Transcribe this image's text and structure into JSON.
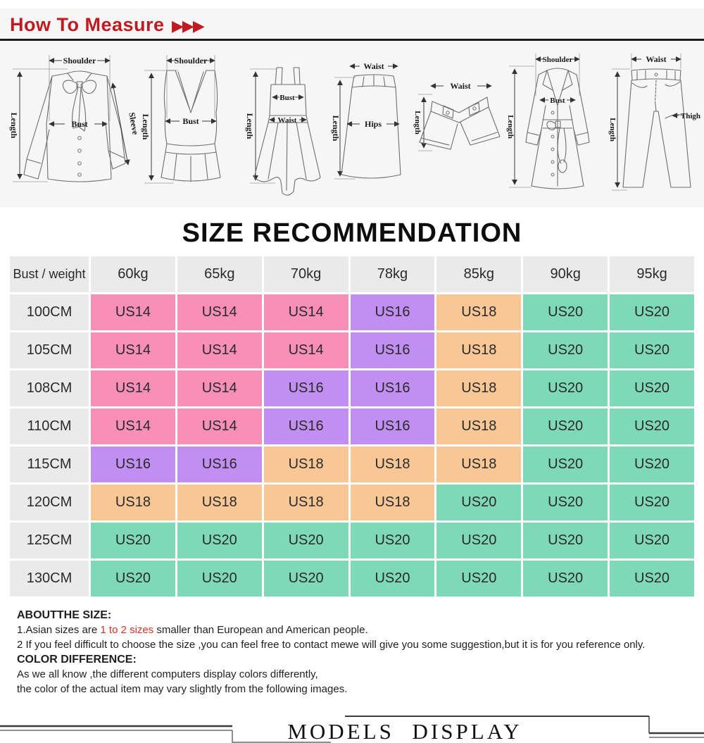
{
  "header": {
    "title": "How To Measure",
    "arrows": "▶▶▶"
  },
  "measure": {
    "garments": [
      {
        "name": "blouse",
        "labels": [
          "Shoulder",
          "Length",
          "Bust",
          "Sleeve"
        ]
      },
      {
        "name": "vest",
        "labels": [
          "Shoulder",
          "Length",
          "Bust"
        ]
      },
      {
        "name": "dress",
        "labels": [
          "Length",
          "Bust",
          "Waist"
        ]
      },
      {
        "name": "skirt",
        "labels": [
          "Waist",
          "Length",
          "Hips"
        ]
      },
      {
        "name": "shorts",
        "labels": [
          "Waist",
          "Length"
        ]
      },
      {
        "name": "coat",
        "labels": [
          "Shoulder",
          "Length",
          "Bust"
        ]
      },
      {
        "name": "pants",
        "labels": [
          "Waist",
          "Length",
          "Thigh"
        ]
      }
    ]
  },
  "size_title": "SIZE RECOMMENDATION",
  "size_table": {
    "columns": [
      "Bust / weight",
      "60kg",
      "65kg",
      "70kg",
      "78kg",
      "85kg",
      "90kg",
      "95kg"
    ],
    "palette": {
      "pink": "#F78FB7",
      "purple": "#C18EF1",
      "orange": "#F9C795",
      "green": "#7ED9B7",
      "gray": "#EAEAEA"
    },
    "rows": [
      {
        "label": "100CM",
        "cells": [
          {
            "v": "US14",
            "c": "pink"
          },
          {
            "v": "US14",
            "c": "pink"
          },
          {
            "v": "US14",
            "c": "pink"
          },
          {
            "v": "US16",
            "c": "purple"
          },
          {
            "v": "US18",
            "c": "orange"
          },
          {
            "v": "US20",
            "c": "green"
          },
          {
            "v": "US20",
            "c": "green"
          }
        ]
      },
      {
        "label": "105CM",
        "cells": [
          {
            "v": "US14",
            "c": "pink"
          },
          {
            "v": "US14",
            "c": "pink"
          },
          {
            "v": "US14",
            "c": "pink"
          },
          {
            "v": "US16",
            "c": "purple"
          },
          {
            "v": "US18",
            "c": "orange"
          },
          {
            "v": "US20",
            "c": "green"
          },
          {
            "v": "US20",
            "c": "green"
          }
        ]
      },
      {
        "label": "108CM",
        "cells": [
          {
            "v": "US14",
            "c": "pink"
          },
          {
            "v": "US14",
            "c": "pink"
          },
          {
            "v": "US16",
            "c": "purple"
          },
          {
            "v": "US16",
            "c": "purple"
          },
          {
            "v": "US18",
            "c": "orange"
          },
          {
            "v": "US20",
            "c": "green"
          },
          {
            "v": "US20",
            "c": "green"
          }
        ]
      },
      {
        "label": "110CM",
        "cells": [
          {
            "v": "US14",
            "c": "pink"
          },
          {
            "v": "US14",
            "c": "pink"
          },
          {
            "v": "US16",
            "c": "purple"
          },
          {
            "v": "US16",
            "c": "purple"
          },
          {
            "v": "US18",
            "c": "orange"
          },
          {
            "v": "US20",
            "c": "green"
          },
          {
            "v": "US20",
            "c": "green"
          }
        ]
      },
      {
        "label": "115CM",
        "cells": [
          {
            "v": "US16",
            "c": "purple"
          },
          {
            "v": "US16",
            "c": "purple"
          },
          {
            "v": "US18",
            "c": "orange"
          },
          {
            "v": "US18",
            "c": "orange"
          },
          {
            "v": "US18",
            "c": "orange"
          },
          {
            "v": "US20",
            "c": "green"
          },
          {
            "v": "US20",
            "c": "green"
          }
        ]
      },
      {
        "label": "120CM",
        "cells": [
          {
            "v": "US18",
            "c": "orange"
          },
          {
            "v": "US18",
            "c": "orange"
          },
          {
            "v": "US18",
            "c": "orange"
          },
          {
            "v": "US18",
            "c": "orange"
          },
          {
            "v": "US20",
            "c": "green"
          },
          {
            "v": "US20",
            "c": "green"
          },
          {
            "v": "US20",
            "c": "green"
          }
        ]
      },
      {
        "label": "125CM",
        "cells": [
          {
            "v": "US20",
            "c": "green"
          },
          {
            "v": "US20",
            "c": "green"
          },
          {
            "v": "US20",
            "c": "green"
          },
          {
            "v": "US20",
            "c": "green"
          },
          {
            "v": "US20",
            "c": "green"
          },
          {
            "v": "US20",
            "c": "green"
          },
          {
            "v": "US20",
            "c": "green"
          }
        ]
      },
      {
        "label": "130CM",
        "cells": [
          {
            "v": "US20",
            "c": "green"
          },
          {
            "v": "US20",
            "c": "green"
          },
          {
            "v": "US20",
            "c": "green"
          },
          {
            "v": "US20",
            "c": "green"
          },
          {
            "v": "US20",
            "c": "green"
          },
          {
            "v": "US20",
            "c": "green"
          },
          {
            "v": "US20",
            "c": "green"
          }
        ]
      }
    ]
  },
  "about": {
    "size_heading": "ABOUTTHE SIZE:",
    "line1_pre": "1.Asian sizes are ",
    "line1_red": "1 to 2 sizes",
    "line1_post": " smaller than European and American people.",
    "line2": "2 If you feel difficult to choose the size ,you can feel free to contact mewe will give you some suggestion,but it is for you reference only.",
    "color_heading": "COLOR DIFFERENCE:",
    "color_line1": "As we all know ,the different computers display colors differently,",
    "color_line2": "the color of the actual item may vary slightly from the following images."
  },
  "models": {
    "title": "MODELS DISPLAY"
  }
}
